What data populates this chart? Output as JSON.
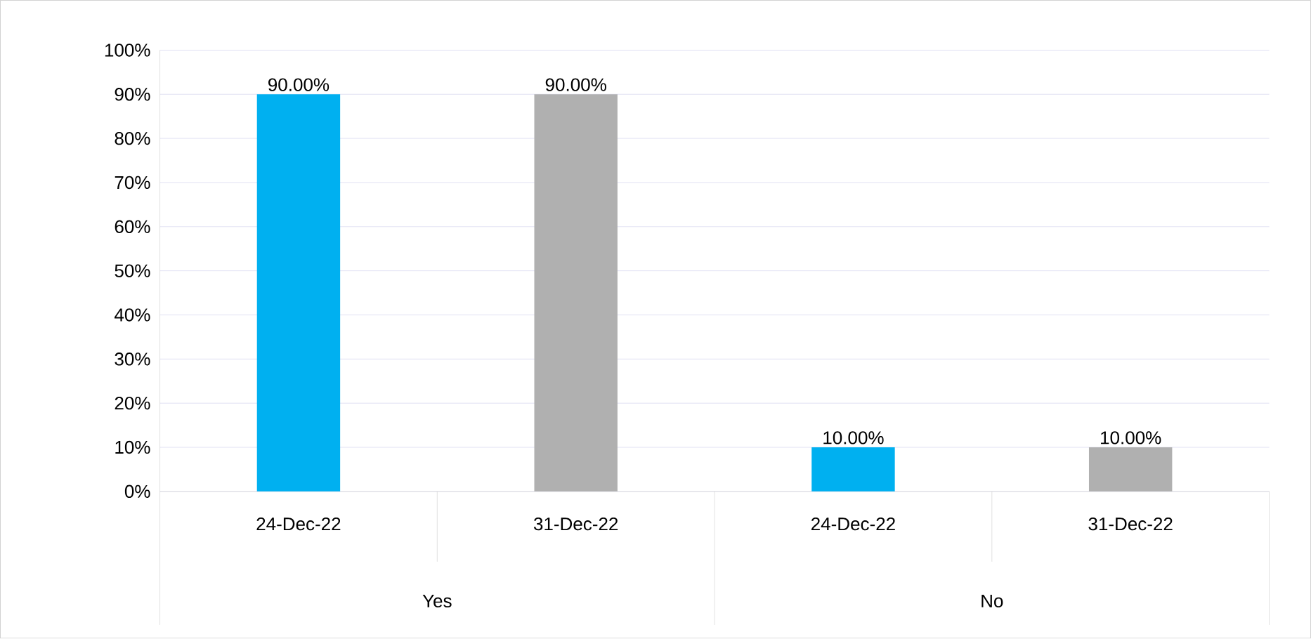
{
  "chart_data": {
    "type": "bar",
    "categories": [
      "24-Dec-22",
      "31-Dec-22",
      "24-Dec-22",
      "31-Dec-22"
    ],
    "values": [
      90,
      90,
      10,
      10
    ],
    "colors": [
      "#00b0f0",
      "#b0b0b0",
      "#00b0f0",
      "#b0b0b0"
    ],
    "value_labels": [
      "90.00%",
      "90.00%",
      "10.00%",
      "10.00%"
    ],
    "annotations": [
      "Yes",
      "No"
    ],
    "ylim": [
      0,
      100
    ],
    "yticks": [
      {
        "value": 0,
        "label": "0%"
      },
      {
        "value": 10,
        "label": "10%"
      },
      {
        "value": 20,
        "label": "20%"
      },
      {
        "value": 30,
        "label": "30%"
      },
      {
        "value": 40,
        "label": "40%"
      },
      {
        "value": 50,
        "label": "50%"
      },
      {
        "value": 60,
        "label": "60%"
      },
      {
        "value": 70,
        "label": "70%"
      },
      {
        "value": 80,
        "label": "80%"
      },
      {
        "value": 90,
        "label": "90%"
      },
      {
        "value": 100,
        "label": "100%"
      }
    ],
    "grid": "y"
  }
}
